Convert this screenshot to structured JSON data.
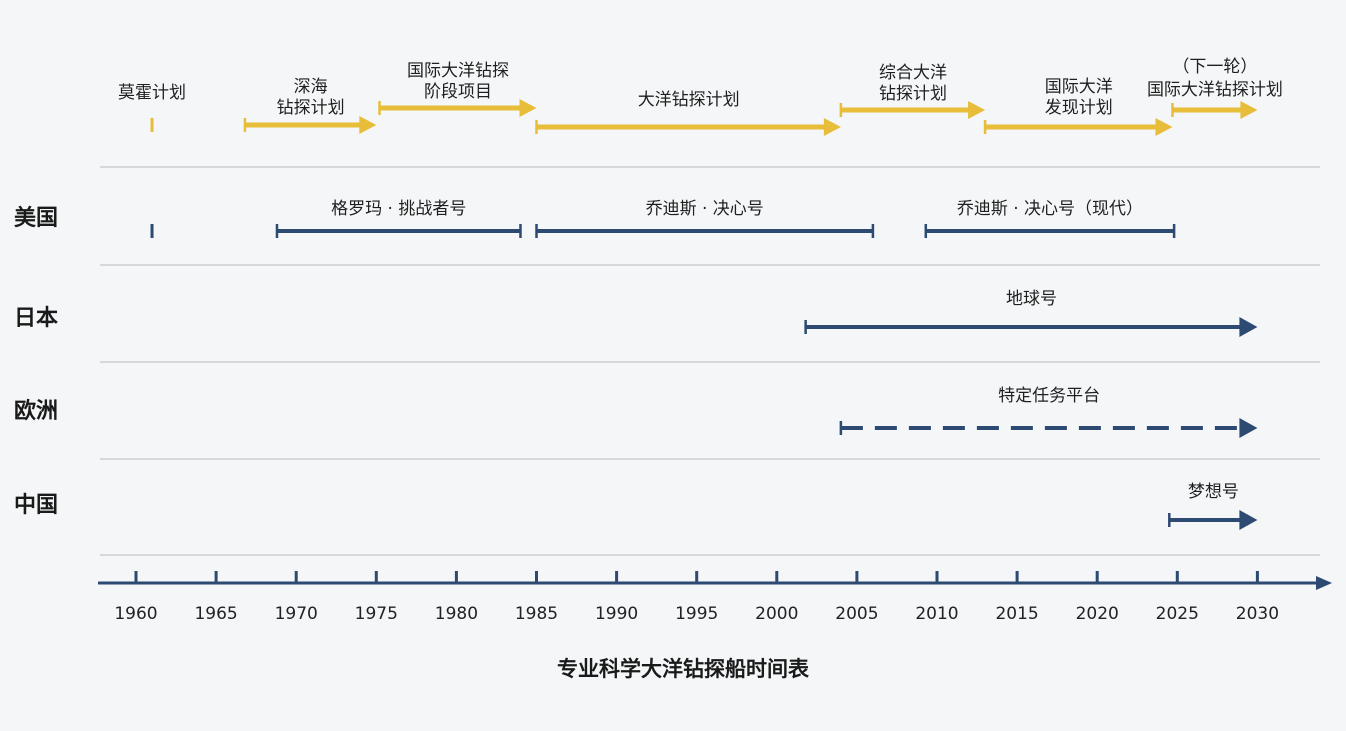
{
  "title": "专业科学大洋钻探船时间表",
  "colors": {
    "program": "#E8BD3A",
    "ship": "#2C4A72",
    "axis": "#2C4A72",
    "separator": "#d5d9dc",
    "background": "#f4f6f7"
  },
  "years": [
    1960,
    1965,
    1970,
    1975,
    1980,
    1985,
    1990,
    1995,
    2000,
    2005,
    2010,
    2015,
    2020,
    2025,
    2030
  ],
  "programs": [
    {
      "lines": [
        "莫霍计划"
      ],
      "start": 1961,
      "end": 1961,
      "arrow": false
    },
    {
      "lines": [
        "深海",
        "钻探计划"
      ],
      "start": 1966.8,
      "end": 1975,
      "arrow": true
    },
    {
      "lines": [
        "国际大洋钻探",
        "阶段项目"
      ],
      "start": 1975.2,
      "end": 1985,
      "arrow": true
    },
    {
      "lines": [
        "大洋钻探计划"
      ],
      "start": 1985,
      "end": 2004,
      "arrow": true
    },
    {
      "lines": [
        "综合大洋",
        "钻探计划"
      ],
      "start": 2004,
      "end": 2013,
      "arrow": true
    },
    {
      "lines": [
        "国际大洋",
        "发现计划"
      ],
      "start": 2013,
      "end": 2024.7,
      "arrow": true
    },
    {
      "lines": [
        "（下一轮）",
        "国际大洋钻探计划"
      ],
      "start": 2024.7,
      "end": 2030,
      "arrow": true
    }
  ],
  "countries": [
    {
      "name": "美国",
      "ships": [
        {
          "label": "",
          "start": 1961,
          "end": 1961,
          "style": "tick"
        },
        {
          "label": "格罗玛 · 挑战者号",
          "start": 1968.8,
          "end": 1984,
          "style": "range"
        },
        {
          "label": "乔迪斯 · 决心号",
          "start": 1985,
          "end": 2006,
          "style": "range"
        },
        {
          "label": "乔迪斯 · 决心号（现代）",
          "start": 2009.3,
          "end": 2024.8,
          "style": "range"
        }
      ]
    },
    {
      "name": "日本",
      "ships": [
        {
          "label": "地球号",
          "start": 2001.8,
          "end": 2030,
          "style": "arrow"
        }
      ]
    },
    {
      "name": "欧洲",
      "ships": [
        {
          "label": "特定任务平台",
          "start": 2004,
          "end": 2030,
          "style": "dashed-arrow"
        }
      ]
    },
    {
      "name": "中国",
      "ships": [
        {
          "label": "梦想号",
          "start": 2024.5,
          "end": 2030,
          "style": "arrow"
        }
      ]
    }
  ]
}
